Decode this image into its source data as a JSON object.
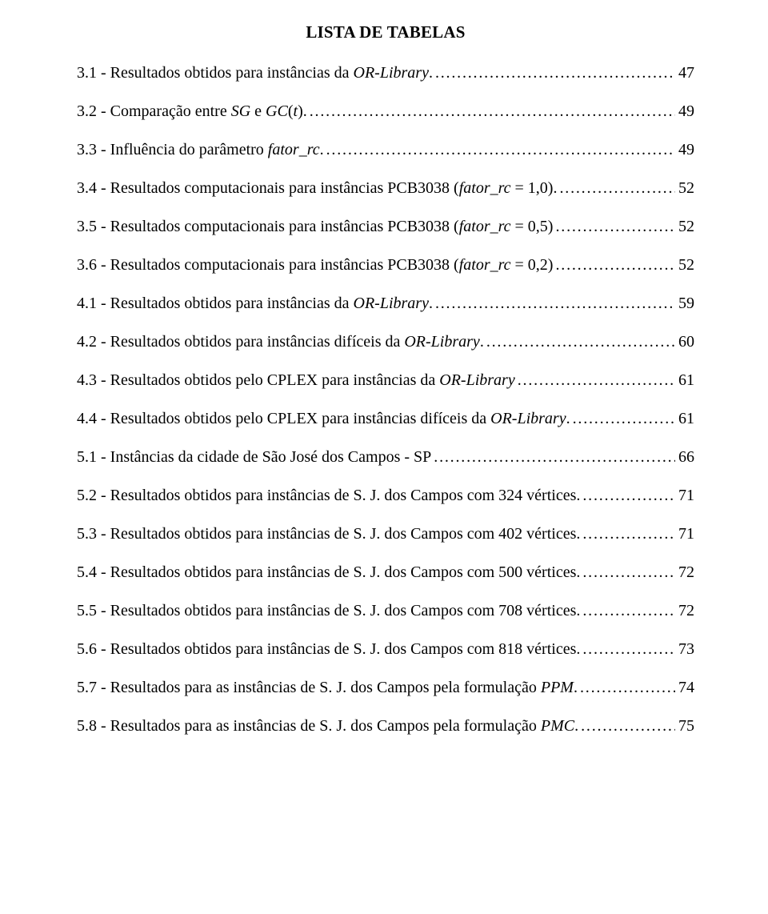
{
  "title": "LISTA DE TABELAS",
  "entries": [
    {
      "prefix": "3.1 - Resultados obtidos para instâncias da ",
      "italic": "OR-Library",
      "suffix": ".",
      "page": "47"
    },
    {
      "prefix": "3.2 - Comparação entre ",
      "italic": "SG",
      "mid": " e ",
      "italic2": "GC",
      "suffix": "(",
      "italic3": "t",
      "suffix2": ").",
      "page": "49"
    },
    {
      "prefix": "3.3 - Influência do parâmetro ",
      "italic": "fator_rc",
      "suffix": ".",
      "page": "49"
    },
    {
      "prefix": "3.4 - Resultados computacionais para instâncias PCB3038 (",
      "italic": "fator_rc",
      "suffix": " = 1,0).",
      "page": "52"
    },
    {
      "prefix": "3.5 - Resultados computacionais para instâncias PCB3038 (",
      "italic": "fator_rc",
      "suffix": " = 0,5)",
      "page": "52"
    },
    {
      "prefix": "3.6 - Resultados computacionais para instâncias PCB3038 (",
      "italic": "fator_rc",
      "suffix": " = 0,2)",
      "page": "52"
    },
    {
      "prefix": "4.1 - Resultados obtidos para instâncias da ",
      "italic": "OR-Library",
      "suffix": ". ",
      "page": "59"
    },
    {
      "prefix": "4.2 - Resultados obtidos para instâncias difíceis da ",
      "italic": "OR-Library",
      "suffix": ". ",
      "page": "60"
    },
    {
      "prefix": "4.3 - Resultados obtidos pelo CPLEX para instâncias da ",
      "italic": "OR-Library",
      "suffix": "",
      "page": "61"
    },
    {
      "prefix": "4.4 - Resultados obtidos pelo CPLEX para instâncias difíceis da ",
      "italic": "OR-Library",
      "suffix": ".",
      "page": "61"
    },
    {
      "prefix": "5.1 - Instâncias da cidade de São José dos Campos - SP",
      "italic": "",
      "suffix": "",
      "page": "66"
    },
    {
      "prefix": "5.2 - Resultados obtidos para instâncias de S. J. dos Campos com 324 vértices. ",
      "italic": "",
      "suffix": "",
      "page": "71"
    },
    {
      "prefix": "5.3 - Resultados obtidos para instâncias de S. J. dos Campos com 402 vértices. ",
      "italic": "",
      "suffix": "",
      "page": "71"
    },
    {
      "prefix": "5.4 - Resultados obtidos para instâncias de S. J. dos Campos com 500 vértices. ",
      "italic": "",
      "suffix": "",
      "page": "72"
    },
    {
      "prefix": "5.5 - Resultados obtidos para instâncias de S. J. dos Campos com 708 vértices. ",
      "italic": "",
      "suffix": "",
      "page": "72"
    },
    {
      "prefix": "5.6 - Resultados obtidos para instâncias de S. J. dos Campos com 818 vértices. ",
      "italic": "",
      "suffix": "",
      "page": "73"
    },
    {
      "prefix": "5.7 - Resultados para as instâncias de S. J. dos Campos pela formulação ",
      "italic": "PPM",
      "suffix": ".",
      "page": "74"
    },
    {
      "prefix": "5.8 - Resultados para as instâncias de S. J. dos Campos pela formulação ",
      "italic": "PMC",
      "suffix": ".",
      "page": "75"
    }
  ]
}
